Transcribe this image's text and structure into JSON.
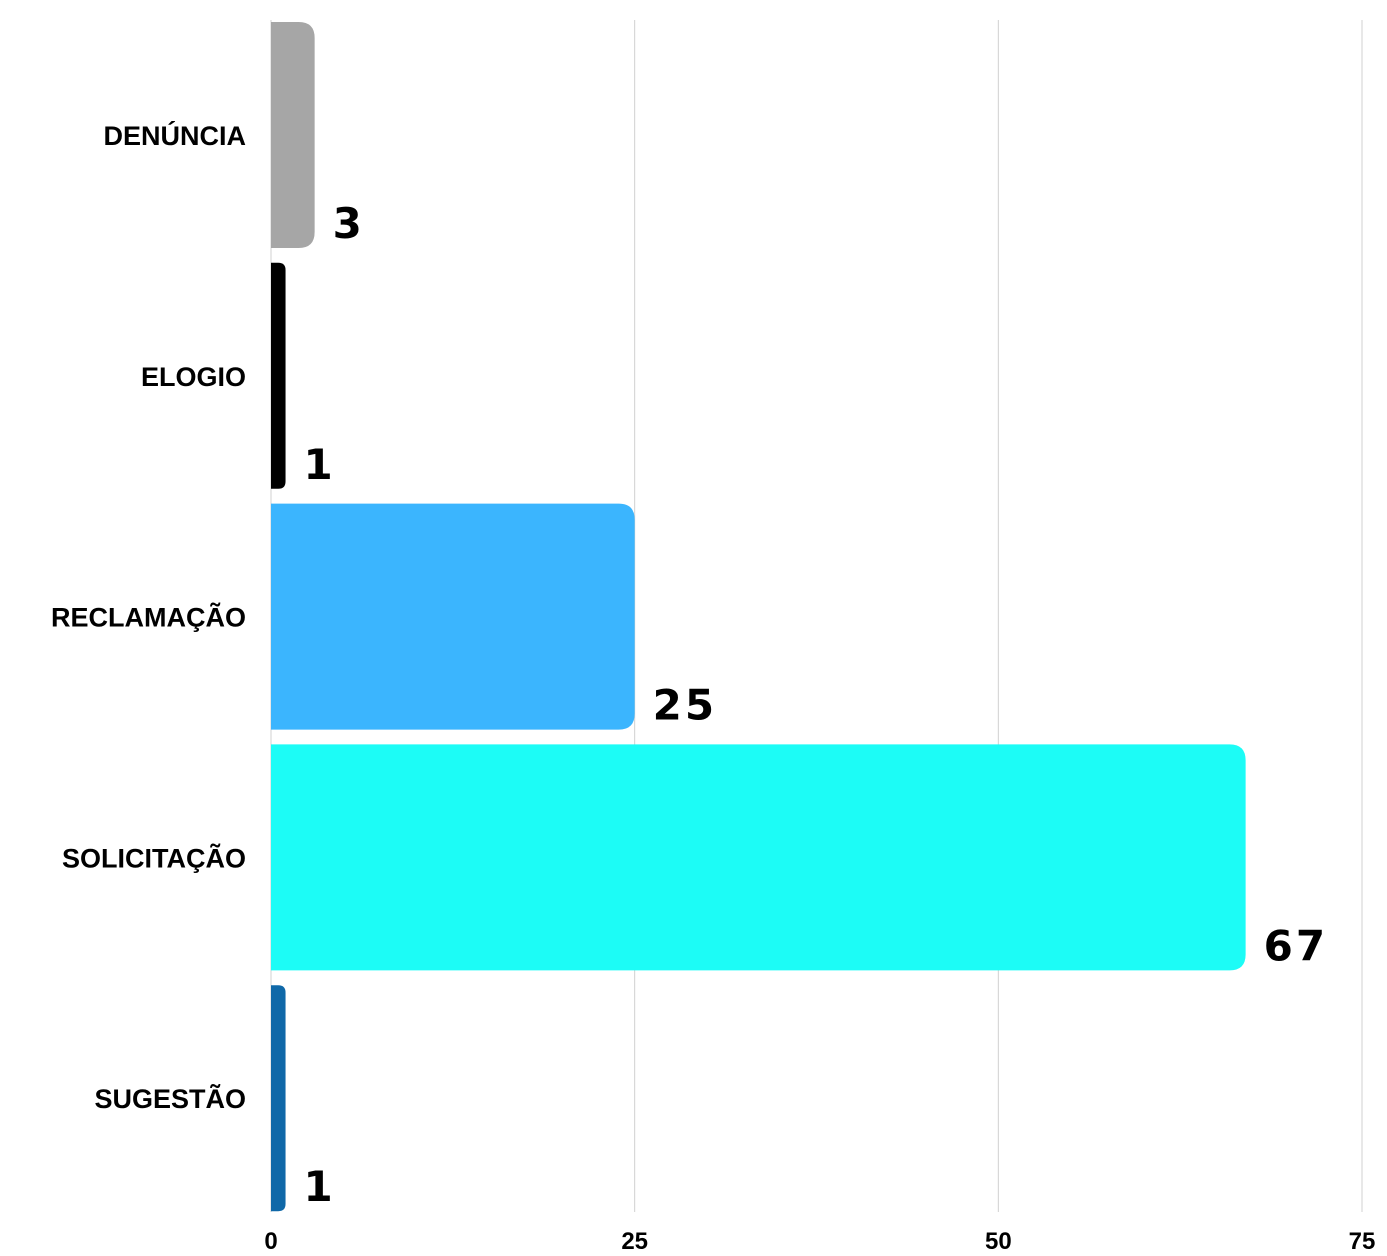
{
  "chart_data": {
    "type": "bar",
    "orientation": "horizontal",
    "categories": [
      "DENÚNCIA",
      "ELOGIO",
      "RECLAMAÇÃO",
      "SOLICITAÇÃO",
      "SUGESTÃO"
    ],
    "values": [
      3,
      1,
      25,
      67,
      1
    ],
    "value_labels": [
      "3",
      "1",
      "25",
      "67",
      "1"
    ],
    "colors": [
      "#a6a6a6",
      "#000000",
      "#3bb5fe",
      "#1cfcf6",
      "#0f68a8"
    ],
    "x_ticks": [
      "0",
      "25",
      "50",
      "75"
    ],
    "xlim": [
      0,
      75
    ],
    "grid": true,
    "title": "",
    "xlabel": "",
    "ylabel": ""
  }
}
